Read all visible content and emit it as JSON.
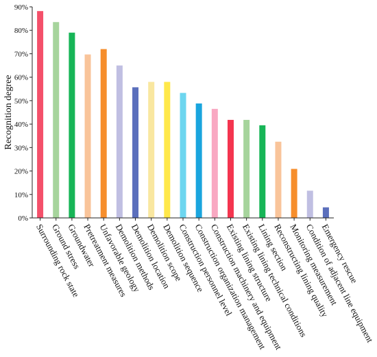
{
  "chart_data": {
    "type": "bar",
    "title": "",
    "xlabel": "",
    "ylabel": "Recognition degree",
    "ylim": [
      0,
      90
    ],
    "yticks": [
      "0%",
      "10%",
      "20%",
      "30%",
      "40%",
      "50%",
      "60%",
      "70%",
      "80%",
      "90%"
    ],
    "grid": false,
    "categories": [
      "Surrounding rock state",
      "Ground stress",
      "Groundwater",
      "Pretreatment measures",
      "Unfavorable geology",
      "Demolition methods",
      "Demolition location",
      "Demolition scope",
      "Demolition sequence",
      "Construction personnel level",
      "Construction organization management",
      "Construction machinery and equipment",
      "Existing lining structure",
      "Existing lining technical conditions",
      "Lining section",
      "Reconstructing lining quality",
      "Monitoring measurement",
      "Condition of adjacent line equipment",
      "Emergency rescue"
    ],
    "values": [
      88.2,
      83.5,
      79.0,
      69.7,
      72.0,
      65.0,
      55.7,
      58.0,
      58.0,
      53.3,
      48.8,
      46.5,
      41.8,
      41.8,
      39.5,
      32.5,
      20.9,
      11.6,
      4.5
    ],
    "colors": [
      "#f4506a",
      "#a6d49c",
      "#17b557",
      "#f9c49a",
      "#f68e2c",
      "#c0bfe2",
      "#5b6fbc",
      "#f9e7a0",
      "#ffe84a",
      "#6dd6ef",
      "#1aa5de",
      "#f9a8c2",
      "#f4354f",
      "#a6d49c",
      "#17b557",
      "#f9c49a",
      "#f68e2c",
      "#c0bfe2",
      "#5b6fbc"
    ]
  }
}
